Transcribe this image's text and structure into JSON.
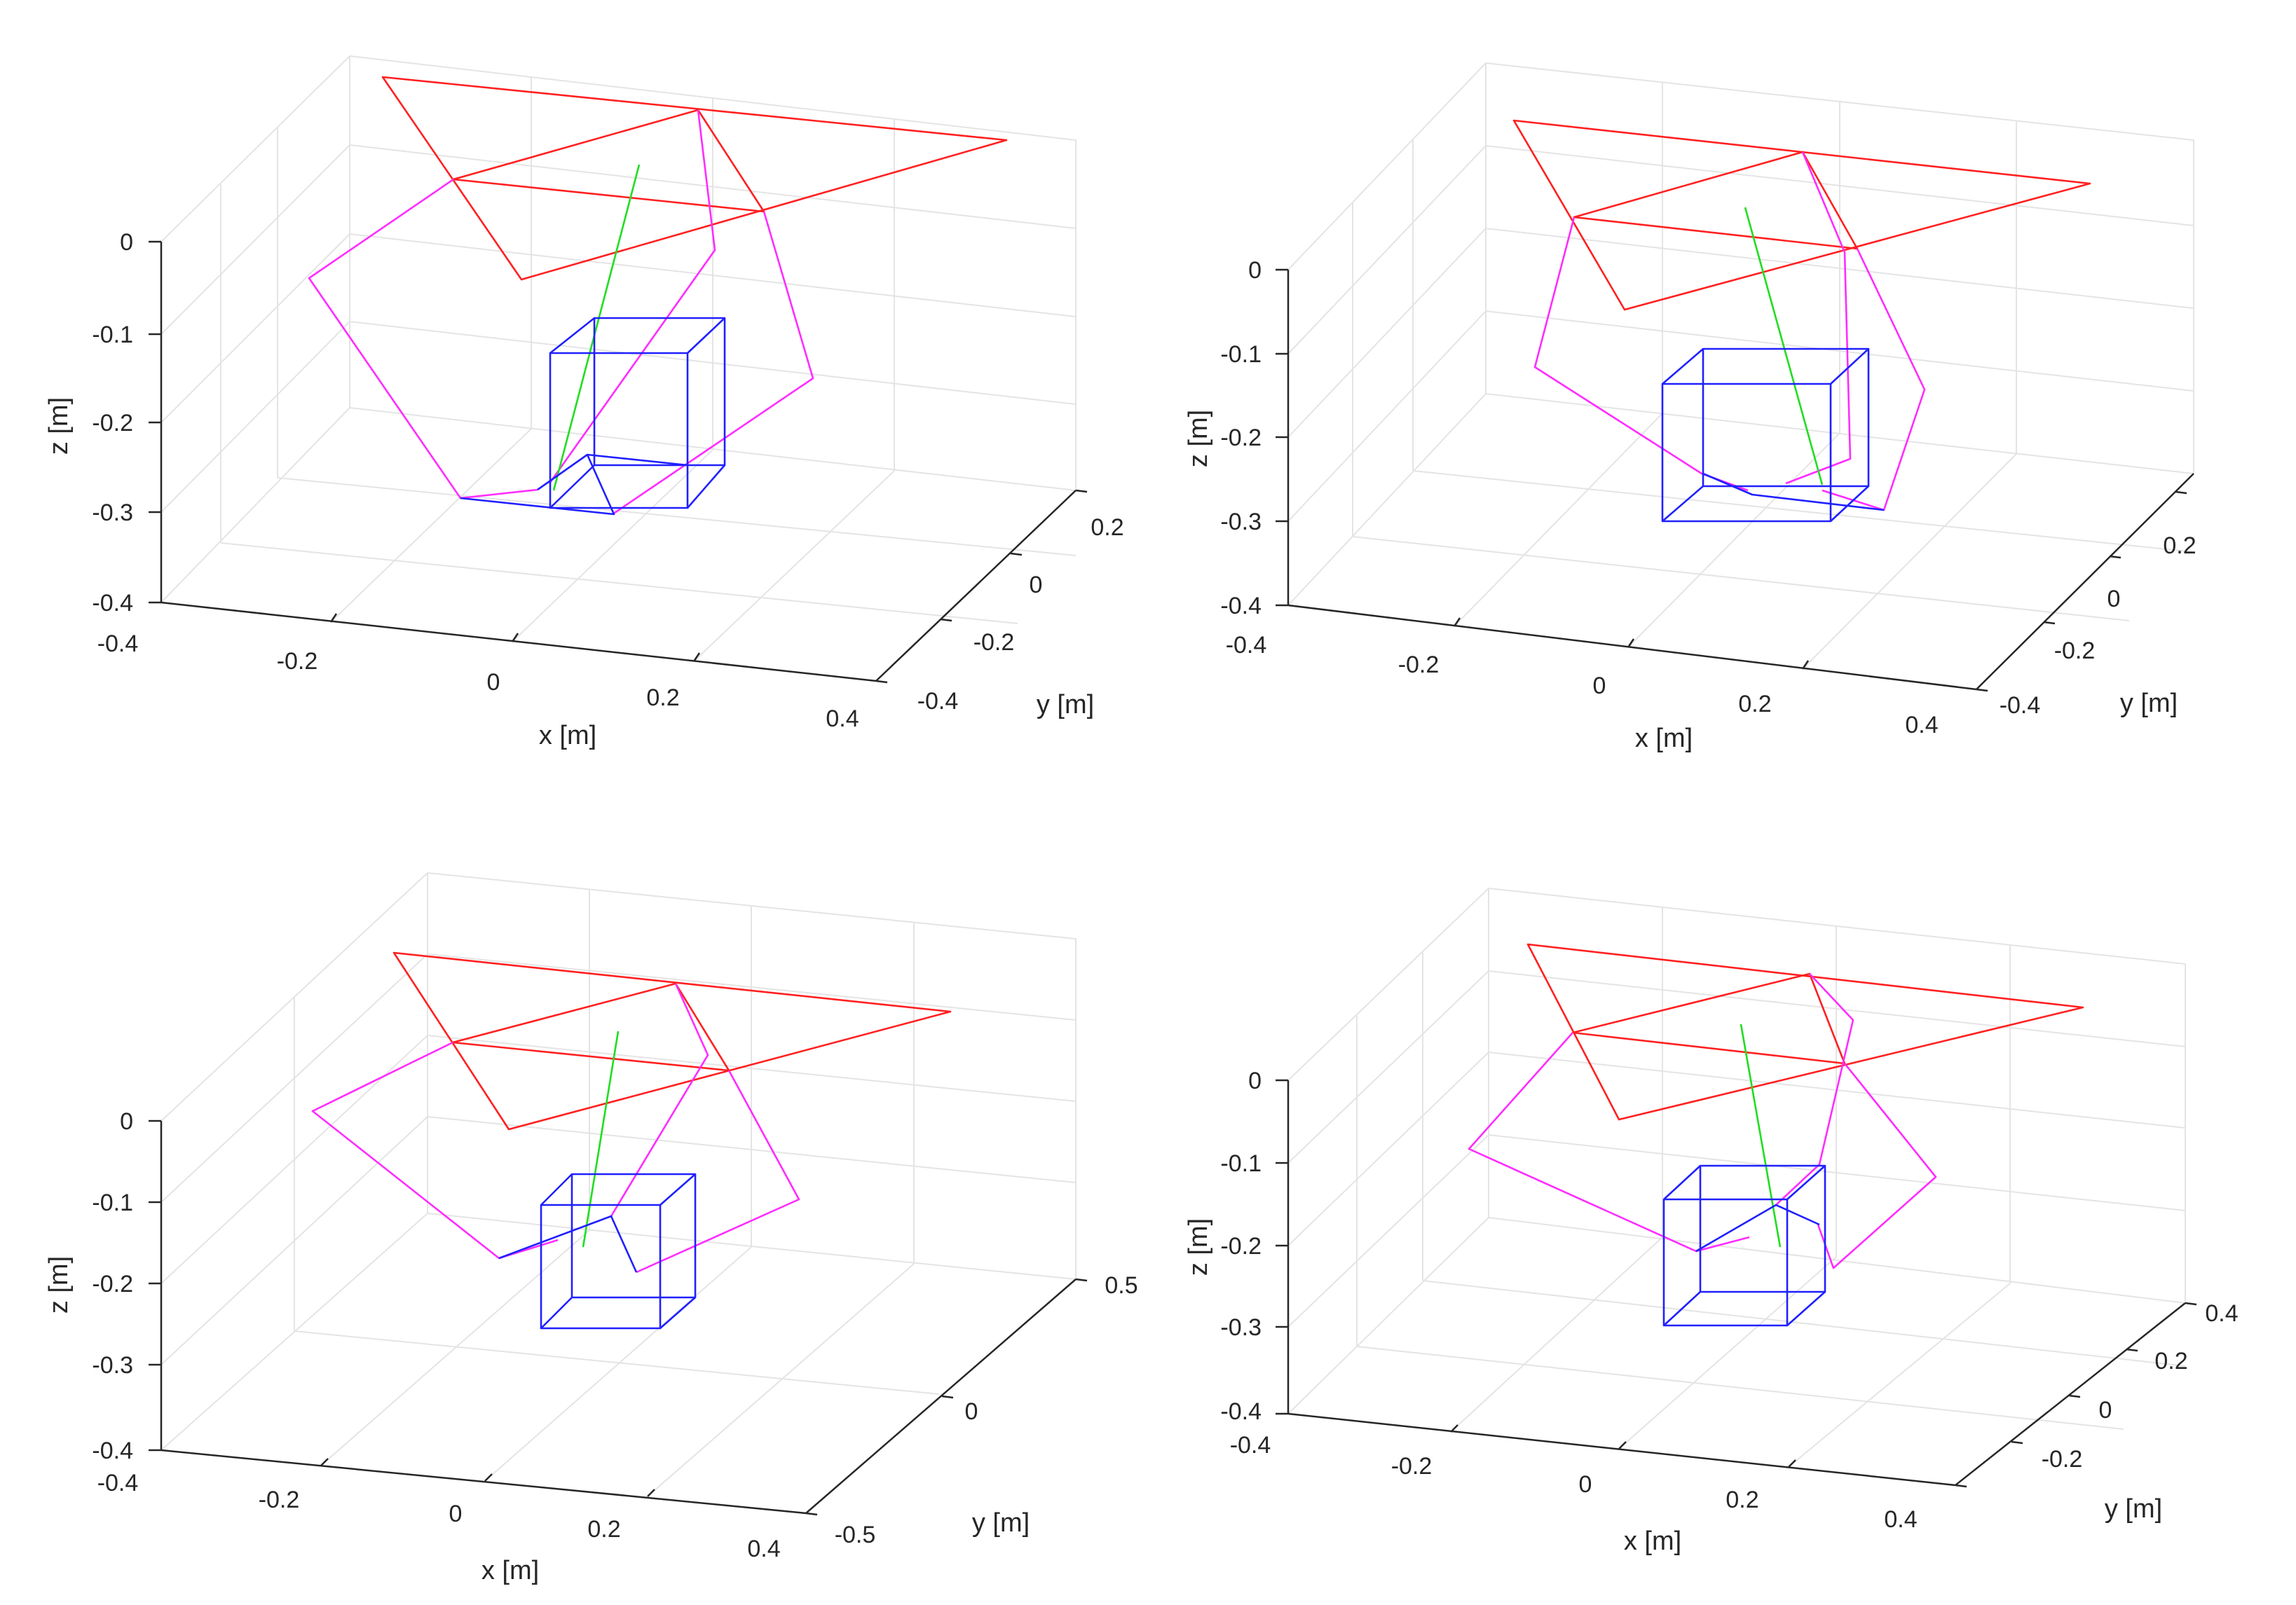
{
  "colors": {
    "base_platform": "#ff2020",
    "legs": "#ff2cff",
    "tool_axis": "#20dd20",
    "object_box": "#2020ff",
    "grid": "#e4e4e4",
    "axis": "#262626"
  },
  "chart_data": [
    {
      "type": "3d-wireframe",
      "xlabel": "x [m]",
      "ylabel": "y [m]",
      "zlabel": "z [m]",
      "x_ticks": [
        "-0.4",
        "-0.2",
        "0",
        "0.2",
        "0.4"
      ],
      "y_ticks": [
        "-0.4",
        "-0.2",
        "0",
        "0.2"
      ],
      "z_ticks": [
        "0",
        "-0.1",
        "-0.2",
        "-0.3",
        "-0.4"
      ],
      "xlim": [
        -0.4,
        0.4
      ],
      "ylim": [
        -0.4,
        0.3
      ],
      "zlim": [
        -0.4,
        0.1
      ],
      "grid": true
    },
    {
      "type": "3d-wireframe",
      "xlabel": "x [m]",
      "ylabel": "y [m]",
      "zlabel": "z [m]",
      "x_ticks": [
        "-0.4",
        "-0.2",
        "0",
        "0.2",
        "0.4"
      ],
      "y_ticks": [
        "-0.4",
        "-0.2",
        "0",
        "0.2"
      ],
      "z_ticks": [
        "0",
        "-0.1",
        "-0.2",
        "-0.3",
        "-0.4"
      ],
      "xlim": [
        -0.4,
        0.4
      ],
      "ylim": [
        -0.4,
        0.3
      ],
      "zlim": [
        -0.4,
        0.1
      ],
      "grid": true
    },
    {
      "type": "3d-wireframe",
      "xlabel": "x [m]",
      "ylabel": "y [m]",
      "zlabel": "z [m]",
      "x_ticks": [
        "-0.4",
        "-0.2",
        "0",
        "0.2",
        "0.4"
      ],
      "y_ticks": [
        "-0.5",
        "0",
        "0.5"
      ],
      "z_ticks": [
        "0",
        "-0.1",
        "-0.2",
        "-0.3",
        "-0.4"
      ],
      "xlim": [
        -0.4,
        0.4
      ],
      "ylim": [
        -0.5,
        0.5
      ],
      "zlim": [
        -0.4,
        0.1
      ],
      "grid": true
    },
    {
      "type": "3d-wireframe",
      "xlabel": "x [m]",
      "ylabel": "y [m]",
      "zlabel": "z [m]",
      "x_ticks": [
        "-0.4",
        "-0.2",
        "0",
        "0.2",
        "0.4"
      ],
      "y_ticks": [
        "-0.2",
        "0",
        "0.2",
        "0.4"
      ],
      "z_ticks": [
        "0",
        "-0.1",
        "-0.2",
        "-0.3",
        "-0.4"
      ],
      "xlim": [
        -0.4,
        0.4
      ],
      "ylim": [
        -0.3,
        0.4
      ],
      "zlim": [
        -0.4,
        0.1
      ],
      "grid": true
    }
  ]
}
